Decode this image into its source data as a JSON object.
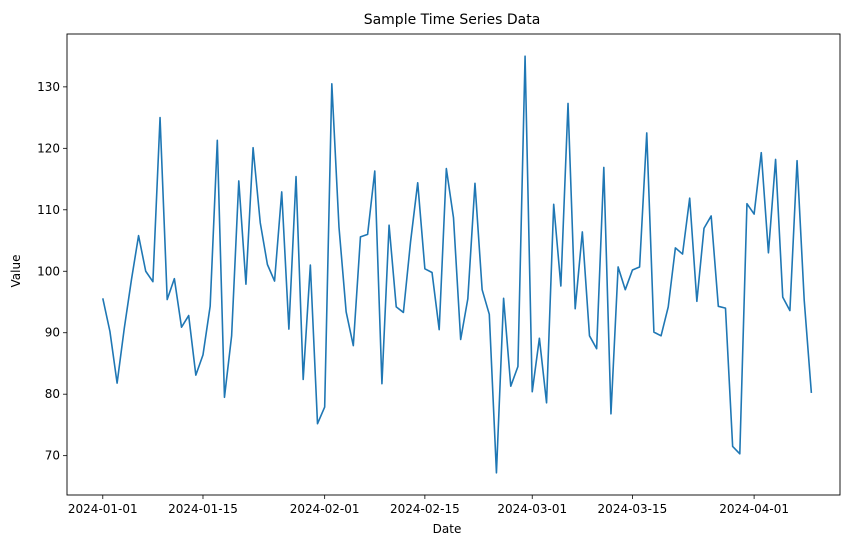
{
  "chart_data": {
    "type": "line",
    "title": "Sample Time Series Data",
    "xlabel": "Date",
    "ylabel": "Value",
    "start_date": "2024-01-01",
    "xlim": [
      "2023-12-27",
      "2024-04-13"
    ],
    "ylim": [
      63.6,
      138.6
    ],
    "x_ticks": [
      "2024-01-01",
      "2024-01-15",
      "2024-02-01",
      "2024-02-15",
      "2024-03-01",
      "2024-03-15",
      "2024-04-01"
    ],
    "y_ticks": [
      70,
      80,
      90,
      100,
      110,
      120,
      130
    ],
    "grid": false,
    "color": "#1f77b4",
    "series": [
      {
        "values": [
          95.6,
          90.2,
          81.8,
          90.7,
          98.6,
          105.8,
          100.0,
          98.3,
          125.0,
          95.4,
          98.8,
          90.9,
          92.8,
          83.1,
          86.4,
          94.3,
          121.3,
          79.5,
          89.5,
          114.7,
          97.9,
          120.1,
          107.9,
          101.1,
          98.4,
          112.9,
          90.6,
          115.4,
          82.4,
          101.0,
          75.2,
          77.9,
          130.5,
          107.2,
          93.4,
          87.9,
          105.6,
          106.0,
          116.3,
          81.7,
          107.5,
          94.2,
          93.3,
          104.8,
          114.4,
          100.4,
          99.8,
          90.5,
          116.7,
          108.7,
          88.9,
          95.5,
          114.3,
          97.0,
          93.0,
          67.2,
          95.6,
          81.3,
          84.5,
          135.0,
          80.4,
          89.1,
          78.6,
          110.9,
          97.6,
          127.3,
          93.9,
          106.4,
          89.5,
          87.4,
          116.9,
          76.8,
          100.7,
          97.0,
          100.2,
          100.7,
          122.5,
          90.1,
          89.5,
          94.2,
          103.8,
          102.8,
          111.9,
          95.1,
          107.0,
          109.0,
          94.3,
          94.0,
          71.5,
          70.3,
          111.0,
          109.3,
          119.3,
          103.0,
          118.2,
          95.8,
          93.6,
          118.0,
          95.3,
          80.2
        ]
      }
    ]
  }
}
